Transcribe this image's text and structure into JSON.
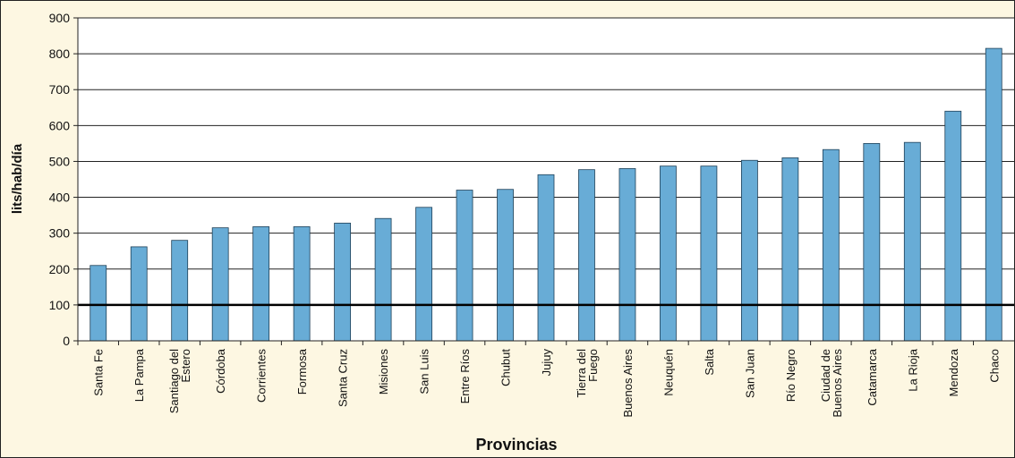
{
  "chart_data": {
    "type": "bar",
    "x_label": "Provincias",
    "y_label": "lits/hab/día",
    "categories": [
      "Santa Fe",
      "La Pampa",
      "Santiago del\nEstero",
      "Córdoba",
      "Corrientes",
      "Formosa",
      "Santa Cruz",
      "Misiones",
      "San Luis",
      "Entre Ríos",
      "Chubut",
      "Jujuy",
      "Tierra del\nFuego",
      "Buenos Aires",
      "Neuquén",
      "Salta",
      "San Juan",
      "Río Negro",
      "Ciudad de\nBuenos Aires",
      "Catamarca",
      "La Rioja",
      "Mendoza",
      "Chaco"
    ],
    "values": [
      210,
      262,
      280,
      315,
      318,
      318,
      328,
      341,
      372,
      420,
      422,
      463,
      477,
      480,
      487,
      487,
      503,
      510,
      533,
      550,
      553,
      640,
      815
    ],
    "color": "#68acd6",
    "ylim": [
      0,
      900
    ],
    "yticks": [
      0,
      100,
      200,
      300,
      400,
      500,
      600,
      700,
      800,
      900
    ],
    "grid": true,
    "reference_line": 100
  }
}
